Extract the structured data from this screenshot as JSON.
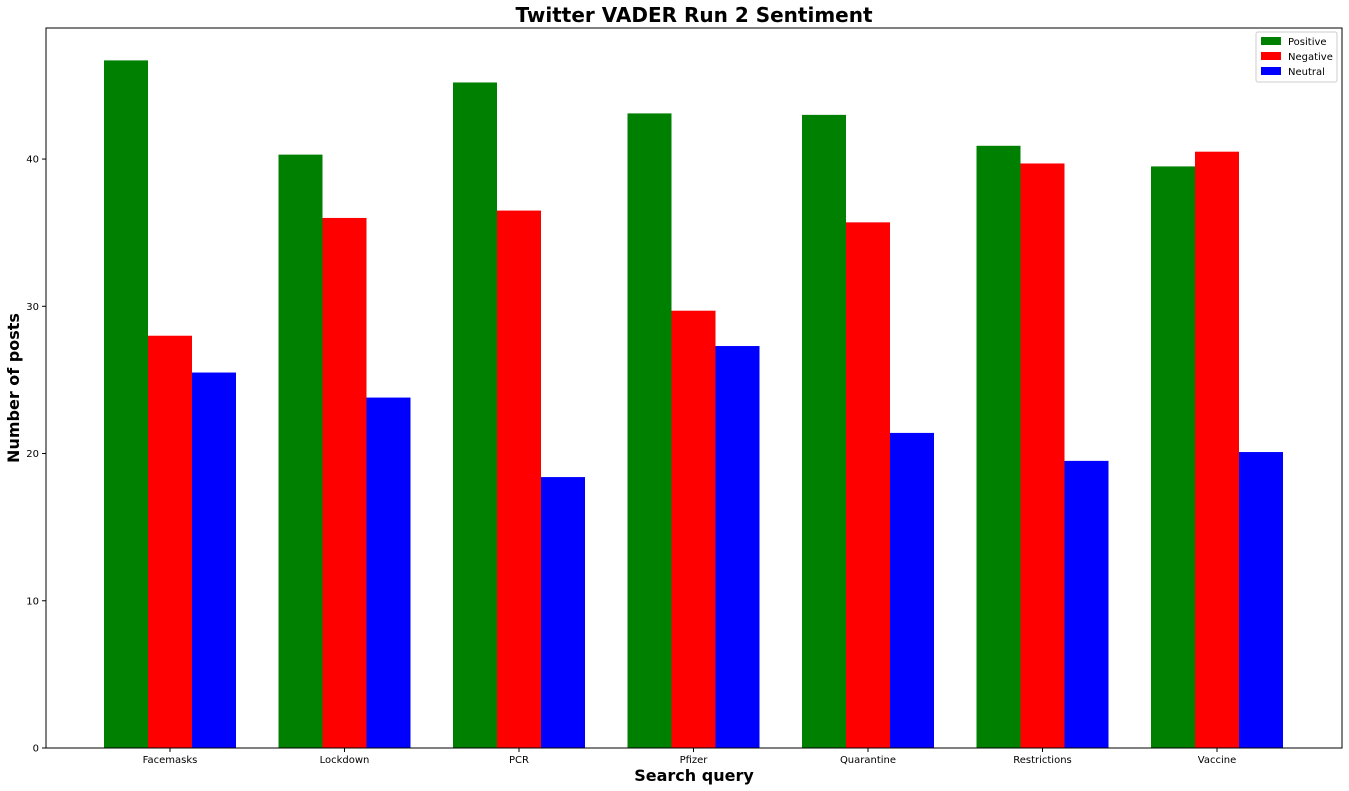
{
  "chart_data": {
    "type": "bar",
    "title": "Twitter VADER Run 2 Sentiment",
    "xlabel": "Search query",
    "ylabel": "Number of posts",
    "categories": [
      "Facemasks",
      "Lockdown",
      "PCR",
      "Pfizer",
      "Quarantine",
      "Restrictions",
      "Vaccine"
    ],
    "series": [
      {
        "name": "Positive",
        "color": "#008000",
        "values": [
          46.7,
          40.3,
          45.2,
          43.1,
          43.0,
          40.9,
          39.5
        ]
      },
      {
        "name": "Negative",
        "color": "#ff0000",
        "values": [
          28.0,
          36.0,
          36.5,
          29.7,
          35.7,
          39.7,
          40.5
        ]
      },
      {
        "name": "Neutral",
        "color": "#0000ff",
        "values": [
          25.5,
          23.8,
          18.4,
          27.3,
          21.4,
          19.5,
          20.1
        ]
      }
    ],
    "ylim": [
      0,
      48.9
    ],
    "yticks": [
      0,
      10,
      20,
      30,
      40
    ],
    "grid": false,
    "legend_position": "top-right"
  }
}
